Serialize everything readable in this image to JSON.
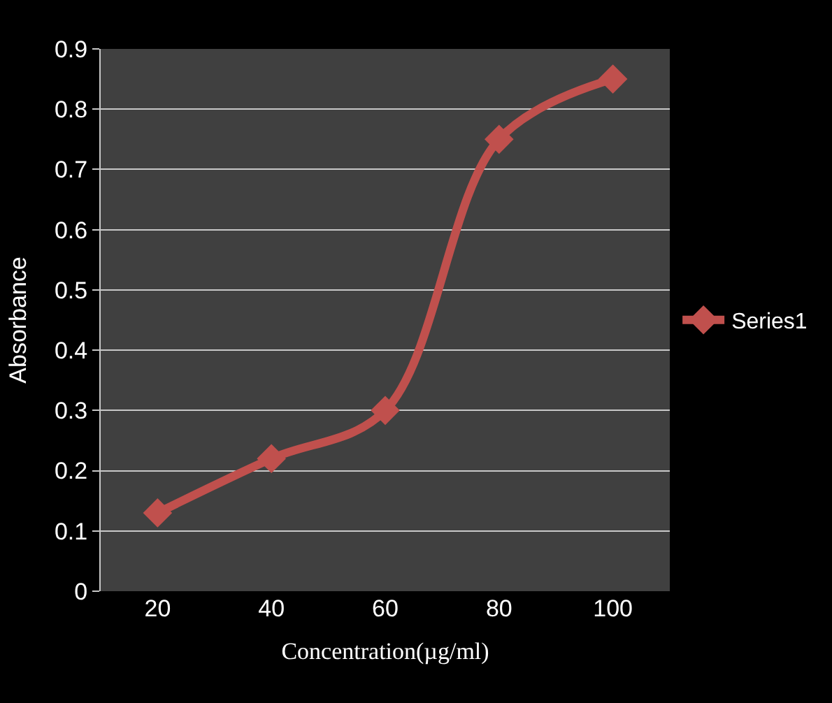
{
  "chart_data": {
    "type": "line",
    "xlabel": "Concentration(µg/ml)",
    "ylabel": "Absorbance",
    "categories": [
      "20",
      "40",
      "60",
      "80",
      "100"
    ],
    "series": [
      {
        "name": "Series1",
        "color": "#c0504d",
        "values": [
          0.13,
          0.22,
          0.3,
          0.75,
          0.85
        ]
      }
    ],
    "ylim": [
      0,
      0.9
    ],
    "yticks": [
      0,
      0.1,
      0.2,
      0.3,
      0.4,
      0.5,
      0.6,
      0.7,
      0.8,
      0.9
    ],
    "grid": "y",
    "legend": "right",
    "marker": "diamond",
    "line_style": "solid"
  }
}
